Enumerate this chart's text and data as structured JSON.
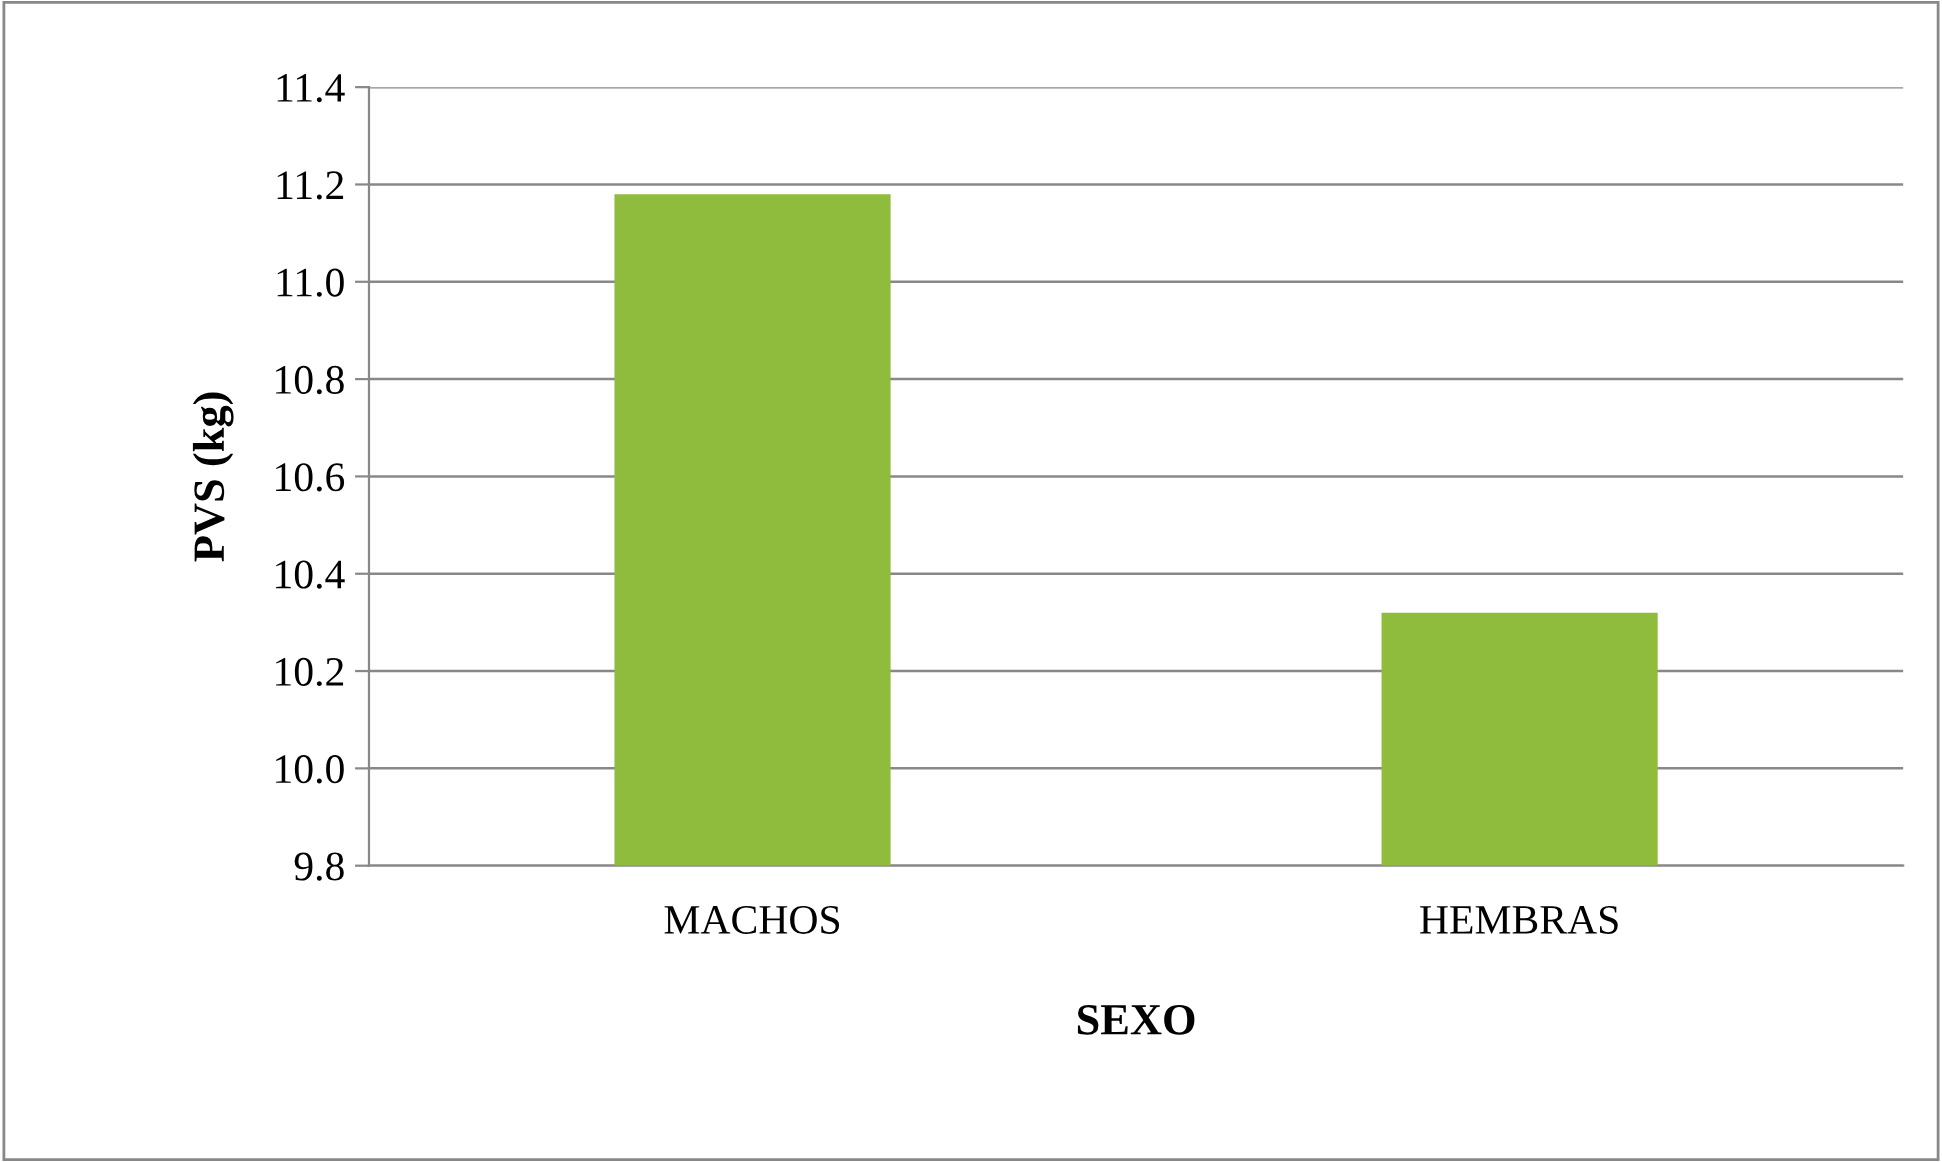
{
  "chart_data": {
    "type": "bar",
    "xlabel": "SEXO",
    "ylabel": "PVS (kg)",
    "categories": [
      "MACHOS",
      "HEMBRAS"
    ],
    "values": [
      11.18,
      10.32
    ],
    "color": "#8fbc3c",
    "ylim": [
      9.8,
      11.4
    ],
    "yticks": [
      {
        "value": 9.8,
        "label": "9.8"
      },
      {
        "value": 10.0,
        "label": "10.0"
      },
      {
        "value": 10.2,
        "label": "10.2"
      },
      {
        "value": 10.4,
        "label": "10.4"
      },
      {
        "value": 10.6,
        "label": "10.6"
      },
      {
        "value": 10.8,
        "label": "10.8"
      },
      {
        "value": 11.0,
        "label": "11.0"
      },
      {
        "value": 11.2,
        "label": "11.2"
      },
      {
        "value": 11.4,
        "label": "11.4"
      }
    ],
    "grid": "y"
  }
}
